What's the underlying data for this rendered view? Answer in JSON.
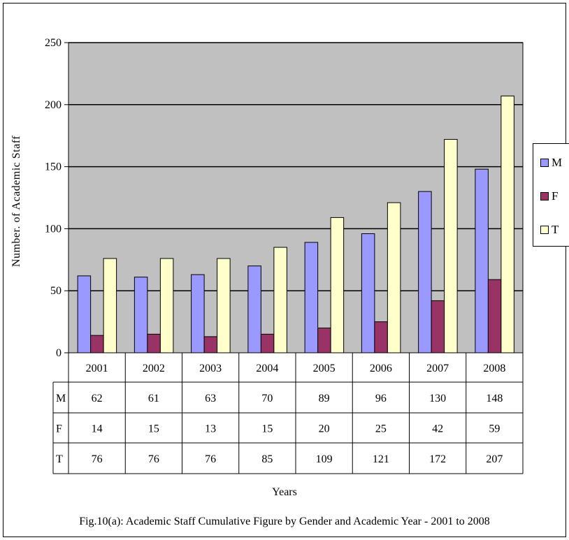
{
  "chart_data": {
    "type": "bar",
    "title": "",
    "caption": "Fig.10(a): Academic Staff Cumulative Figure by Gender and Academic Year - 2001 to 2008",
    "xlabel": "Years",
    "ylabel": "Number. of Academic Staff",
    "ylim": [
      0,
      250
    ],
    "yticks": [
      "0",
      "50",
      "100",
      "150",
      "200",
      "250"
    ],
    "ytick_values": [
      0,
      50,
      100,
      150,
      200,
      250
    ],
    "grid": true,
    "legend_position": "right",
    "categories": [
      "2001",
      "2002",
      "2003",
      "2004",
      "2005",
      "2006",
      "2007",
      "2008"
    ],
    "series": [
      {
        "name": "M",
        "color": "#9999ff",
        "values": [
          62,
          61,
          63,
          70,
          89,
          96,
          130,
          148
        ]
      },
      {
        "name": "F",
        "color": "#993366",
        "values": [
          14,
          15,
          13,
          15,
          20,
          25,
          42,
          59
        ]
      },
      {
        "name": "T",
        "color": "#ffffcc",
        "values": [
          76,
          76,
          76,
          85,
          109,
          121,
          172,
          207
        ]
      }
    ],
    "data_table": {
      "rows": [
        {
          "label": "M",
          "values": [
            "62",
            "61",
            "63",
            "70",
            "89",
            "96",
            "130",
            "148"
          ]
        },
        {
          "label": "F",
          "values": [
            "14",
            "15",
            "13",
            "15",
            "20",
            "25",
            "42",
            "59"
          ]
        },
        {
          "label": "T",
          "values": [
            "76",
            "76",
            "76",
            "85",
            "109",
            "121",
            "172",
            "207"
          ]
        }
      ]
    },
    "plot_background": "#c0c0c0"
  }
}
